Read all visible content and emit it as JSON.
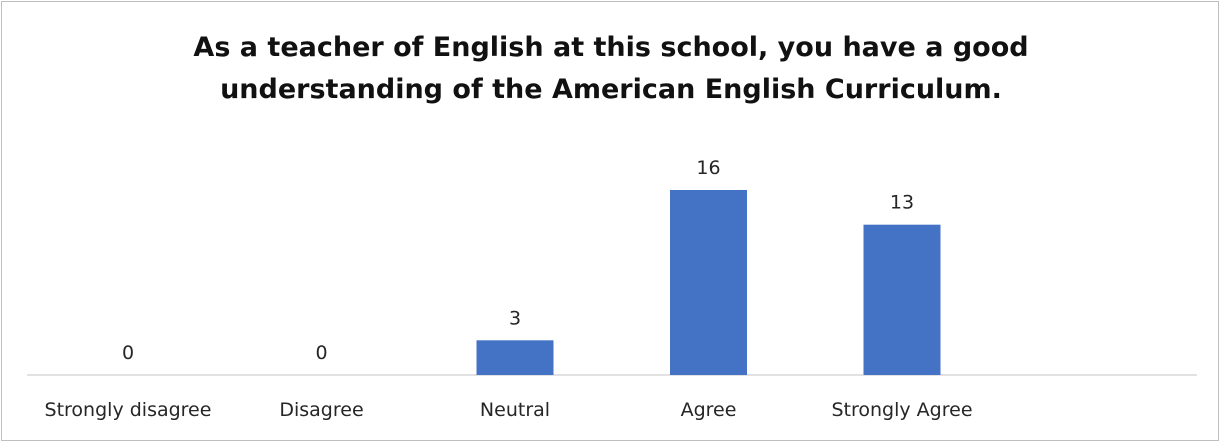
{
  "chart_data": {
    "type": "bar",
    "title": "As a teacher of English at this school, you have a good\nunderstanding of the American English Curriculum.",
    "categories": [
      "Strongly disagree",
      "Disagree",
      "Neutral",
      "Agree",
      "Strongly Agree"
    ],
    "values": [
      0,
      0,
      3,
      16,
      13
    ],
    "data_labels": [
      "0",
      "0",
      "3",
      "16",
      "13"
    ],
    "ylim": [
      0,
      16
    ],
    "grid": false,
    "legend": "none",
    "bar_color": "#4472c4"
  }
}
